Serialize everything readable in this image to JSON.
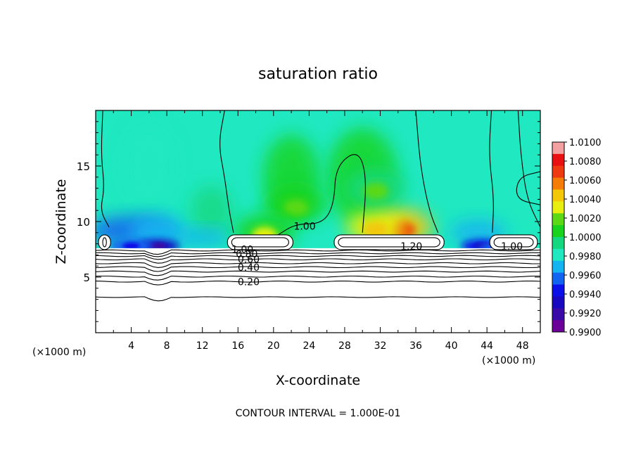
{
  "chart_data": {
    "type": "heatmap",
    "title": "saturation ratio",
    "xlabel": "X-coordinate",
    "ylabel": "Z-coordinate",
    "x_unit": "(×1000 m)",
    "x_unit_right": "(×1000 m)",
    "footer": "CONTOUR INTERVAL = 1.000E-01",
    "xlim": [
      0,
      50
    ],
    "ylim": [
      0,
      20
    ],
    "x_ticks": [
      4,
      8,
      12,
      16,
      20,
      24,
      28,
      32,
      36,
      40,
      44,
      48
    ],
    "y_ticks": [
      5,
      10,
      15
    ],
    "colorbar": {
      "ticks": [
        "1.0100",
        "1.0080",
        "1.0060",
        "1.0040",
        "1.0020",
        "1.0000",
        "0.9980",
        "0.9960",
        "0.9940",
        "0.9920",
        "0.9900"
      ],
      "colors": [
        "#f2a0a0",
        "#e81010",
        "#ee3a10",
        "#f47d08",
        "#f2c808",
        "#e8ef10",
        "#5cd816",
        "#18d41e",
        "#14d880",
        "#20e8c0",
        "#14b4f0",
        "#1264f0",
        "#0c10e8",
        "#1808c0",
        "#3a0aa8",
        "#6a0098"
      ]
    },
    "contour_labels": [
      {
        "text": "1.00",
        "x": 23.5,
        "z": 9.6
      },
      {
        "text": "1.20",
        "x": 35.5,
        "z": 7.8
      },
      {
        "text": "1.00",
        "x": 46.8,
        "z": 7.8
      },
      {
        "text": "1.00",
        "x": 16.5,
        "z": 7.5
      },
      {
        "text": "0.80",
        "x": 17.0,
        "z": 7.1
      },
      {
        "text": "0.60",
        "x": 17.2,
        "z": 6.6
      },
      {
        "text": "0.40",
        "x": 17.2,
        "z": 5.9
      },
      {
        "text": "0.20",
        "x": 17.2,
        "z": 4.6
      }
    ],
    "cloud_regions_x": [
      [
        0,
        2
      ],
      [
        14.5,
        22.5
      ],
      [
        26.5,
        39.5
      ],
      [
        44,
        50
      ]
    ],
    "cloud_base_z": 7.6,
    "supersaturation_peaks": [
      {
        "x": 34.5,
        "z": 9.5,
        "value": 1.007
      },
      {
        "x": 31.5,
        "z": 9.5,
        "value": 1.005
      },
      {
        "x": 22.5,
        "z": 11.5,
        "value": 1.0025
      },
      {
        "x": 31.5,
        "z": 13.0,
        "value": 1.002
      },
      {
        "x": 19.0,
        "z": 9.0,
        "value": 1.003
      }
    ],
    "subsaturation_minima": [
      {
        "x": 7.0,
        "z": 7.8,
        "value": 0.992
      },
      {
        "x": 4.0,
        "z": 7.8,
        "value": 0.994
      },
      {
        "x": 43.5,
        "z": 7.8,
        "value": 0.993
      },
      {
        "x": 45.5,
        "z": 7.6,
        "value": 0.995
      }
    ]
  }
}
